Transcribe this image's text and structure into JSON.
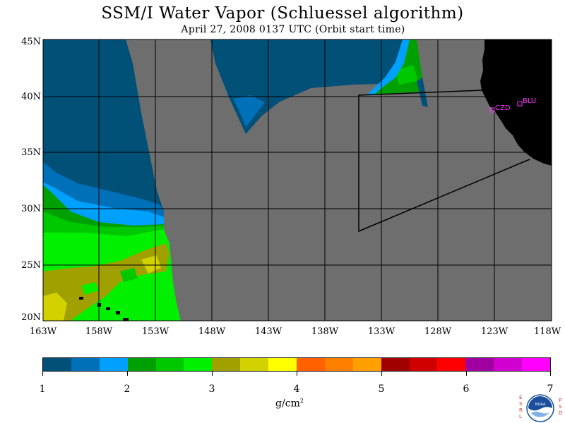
{
  "title": "SSM/I Water Vapor (Schluessel algorithm)",
  "subtitle": "April 27, 2008  0137 UTC  (Orbit start time)",
  "map": {
    "lat_labels": [
      "45N",
      "40N",
      "35N",
      "30N",
      "25N",
      "20N"
    ],
    "lon_labels": [
      "163W",
      "158W",
      "153W",
      "148W",
      "143W",
      "138W",
      "133W",
      "128W",
      "123W",
      "118W"
    ],
    "stations": [
      {
        "name": "CZD"
      },
      {
        "name": "BLU"
      }
    ],
    "colors": {
      "no_data": "#6e6e6e",
      "land": "#000000",
      "station": "#ff33ff"
    }
  },
  "colorbar": {
    "colors": [
      "#005078",
      "#0070b8",
      "#00a0ff",
      "#00a000",
      "#00c800",
      "#00f000",
      "#a0a000",
      "#d2d200",
      "#ffff00",
      "#ff6000",
      "#ff8000",
      "#ffa000",
      "#a00000",
      "#d00000",
      "#ff0000",
      "#a000a0",
      "#d000d0",
      "#ff00ff"
    ],
    "tick_labels": [
      "1",
      "2",
      "3",
      "4",
      "5",
      "6",
      "7"
    ],
    "units": "g/cm",
    "units_sup": "2"
  },
  "logo": {
    "left_letters": [
      "E",
      "S",
      "R",
      "L"
    ],
    "right_letters": [
      "P",
      "S",
      "D"
    ],
    "name": "noaa-logo-icon"
  }
}
